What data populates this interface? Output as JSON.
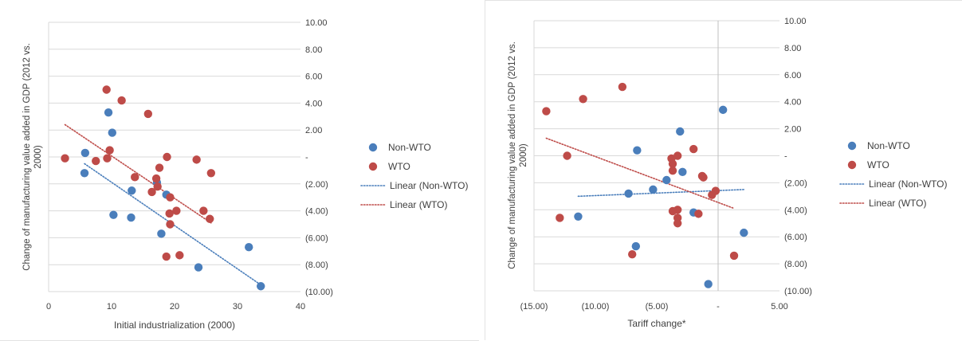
{
  "colors": {
    "non_wto": "#4a7ebb",
    "wto": "#be4b48",
    "grid": "#d9d9d9",
    "zero_line": "#bfbfbf",
    "text": "#404040"
  },
  "chart_data": [
    {
      "type": "scatter",
      "title": "",
      "xlabel": "Initial industrialization (2000)",
      "ylabel": "Change of manufacturing value added in GDP (2012 vs. 2000)",
      "xlim": [
        0,
        40
      ],
      "ylim": [
        -10,
        10
      ],
      "x_ticks": [
        0,
        10,
        20,
        30,
        40
      ],
      "x_tick_labels": [
        "0",
        "10",
        "20",
        "30",
        "40"
      ],
      "y_ticks": [
        10,
        8,
        6,
        4,
        2,
        0,
        -2,
        -4,
        -6,
        -8,
        -10
      ],
      "y_tick_labels": [
        "10.00",
        "8.00",
        "6.00",
        "4.00",
        "2.00",
        "-",
        "(2.00)",
        "(4.00)",
        "(6.00)",
        "(8.00)",
        "(10.00)"
      ],
      "y_axis_side": "right",
      "grid": "horizontal",
      "legend_position": "right",
      "series": [
        {
          "name": "Non-WTO",
          "x": [
            9.5,
            10.1,
            5.8,
            5.7,
            17.2,
            13.2,
            18.7,
            10.3,
            13.1,
            17.9,
            23.8,
            31.8,
            33.7
          ],
          "y": [
            3.3,
            1.8,
            0.3,
            -1.2,
            -1.9,
            -2.5,
            -2.8,
            -4.3,
            -4.5,
            -5.7,
            -8.2,
            -6.7,
            -9.6
          ]
        },
        {
          "name": "WTO",
          "x": [
            9.2,
            11.6,
            15.8,
            9.7,
            2.6,
            7.5,
            9.3,
            18.8,
            17.6,
            23.5,
            25.8,
            13.7,
            17.1,
            17.3,
            16.4,
            19.3,
            20.3,
            19.2,
            19.3,
            24.6,
            25.6,
            18.7,
            20.8
          ],
          "y": [
            5.0,
            4.2,
            3.2,
            0.5,
            -0.1,
            -0.3,
            -0.1,
            0.0,
            -0.8,
            -0.2,
            -1.2,
            -1.5,
            -1.6,
            -2.2,
            -2.6,
            -3.0,
            -4.0,
            -4.2,
            -5.0,
            -4.0,
            -4.6,
            -7.4,
            -7.3
          ]
        }
      ],
      "trendlines": [
        {
          "name": "Linear (Non-WTO)",
          "series": "Non-WTO",
          "x": [
            5.7,
            33.7
          ],
          "y": [
            -0.5,
            -9.5
          ]
        },
        {
          "name": "Linear (WTO)",
          "series": "WTO",
          "x": [
            2.6,
            25.8
          ],
          "y": [
            2.4,
            -4.9
          ]
        }
      ]
    },
    {
      "type": "scatter",
      "title": "",
      "xlabel": "Tariff change*",
      "ylabel": "Change of manufacturing value added in GDP (2012 vs. 2000)",
      "xlim": [
        -15,
        5
      ],
      "ylim": [
        -10,
        10
      ],
      "x_ticks": [
        -15,
        -10,
        -5,
        0,
        5
      ],
      "x_tick_labels": [
        "(15.00)",
        "(10.00)",
        "(5.00)",
        "-",
        "5.00"
      ],
      "y_ticks": [
        10,
        8,
        6,
        4,
        2,
        0,
        -2,
        -4,
        -6,
        -8,
        -10
      ],
      "y_tick_labels": [
        "10.00",
        "8.00",
        "6.00",
        "4.00",
        "2.00",
        "-",
        "(2.00)",
        "(4.00)",
        "(6.00)",
        "(8.00)",
        "(10.00)"
      ],
      "y_axis_side": "right",
      "grid": "horizontal",
      "legend_position": "right",
      "series": [
        {
          "name": "Non-WTO",
          "x": [
            0.4,
            -3.1,
            -6.6,
            -2.9,
            -4.2,
            -5.3,
            -7.3,
            -2.0,
            -11.4,
            -6.7,
            2.1,
            -0.8
          ],
          "y": [
            3.4,
            1.8,
            0.4,
            -1.2,
            -1.8,
            -2.5,
            -2.8,
            -4.2,
            -4.5,
            -6.7,
            -5.7,
            -9.5
          ]
        },
        {
          "name": "WTO",
          "x": [
            -14.0,
            -11.0,
            -7.8,
            -12.3,
            -12.9,
            -7.0,
            -3.8,
            -3.3,
            -2.0,
            -3.7,
            -3.7,
            -1.3,
            -1.2,
            -0.2,
            -0.5,
            -3.7,
            -3.3,
            -1.6,
            -3.3,
            -3.3,
            1.3
          ],
          "y": [
            3.3,
            4.2,
            5.1,
            0.0,
            -4.6,
            -7.3,
            -0.2,
            0.0,
            0.5,
            -0.6,
            -1.1,
            -1.5,
            -1.6,
            -2.6,
            -2.9,
            -4.1,
            -4.0,
            -4.3,
            -4.6,
            -5.0,
            -7.4
          ]
        }
      ],
      "trendlines": [
        {
          "name": "Linear (Non-WTO)",
          "series": "Non-WTO",
          "x": [
            -11.4,
            2.1
          ],
          "y": [
            -3.0,
            -2.5
          ]
        },
        {
          "name": "Linear (WTO)",
          "series": "WTO",
          "x": [
            -14.0,
            1.3
          ],
          "y": [
            1.3,
            -3.9
          ]
        }
      ]
    }
  ]
}
